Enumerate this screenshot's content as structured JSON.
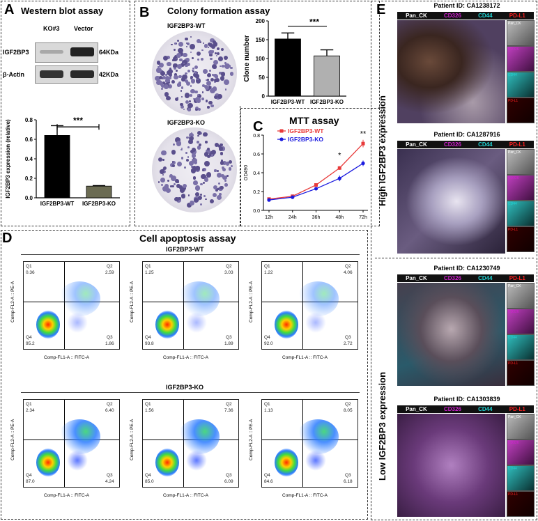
{
  "panelA": {
    "letter": "A",
    "title": "Western blot assay",
    "lanes": [
      "KO#3",
      "Vector"
    ],
    "rows": [
      {
        "protein": "IGF2BP3",
        "kda": "64KDa"
      },
      {
        "protein": "β-Actin",
        "kda": "42KDa"
      }
    ],
    "ylabel": "IGF2BP3 expression (relative)",
    "sig": "***"
  },
  "panelB": {
    "letter": "B",
    "title": "Colony formation assay",
    "dish_labels": [
      "IGF2BP3-WT",
      "IGF2BP3-KO"
    ],
    "ylabel": "Clone number",
    "sig": "***"
  },
  "panelC": {
    "letter": "C",
    "title": "MTT assay",
    "ylabel": "OD490",
    "sig_48": "*",
    "sig_72": "**"
  },
  "panelD": {
    "letter": "D",
    "title": "Cell apoptosis assay",
    "group_wt": "IGF2BP3-WT",
    "group_ko": "IGF2BP3-KO",
    "xaxis": "Comp-FL1-A :: FITC-A",
    "yaxis": "Comp-FL2-A :: PE-A",
    "quadrant_names": [
      "Q1",
      "Q2",
      "Q3",
      "Q4"
    ],
    "plots": [
      {
        "q1": "0.36",
        "q2": "2.59",
        "q3": "1.86",
        "q4": "95.2"
      },
      {
        "q1": "1.25",
        "q2": "3.03",
        "q3": "1.89",
        "q4": "93.8"
      },
      {
        "q1": "1.22",
        "q2": "4.06",
        "q3": "2.72",
        "q4": "92.0"
      },
      {
        "q1": "2.34",
        "q2": "6.40",
        "q3": "4.24",
        "q4": "87.0"
      },
      {
        "q1": "1.56",
        "q2": "7.36",
        "q3": "6.09",
        "q4": "85.0"
      },
      {
        "q1": "1.13",
        "q2": "8.05",
        "q3": "6.18",
        "q4": "84.6"
      }
    ]
  },
  "panelE": {
    "letter": "E",
    "high_label": "High IGF2BP3 expression",
    "low_label": "Low IGF2BP3 expression",
    "markers": [
      "Pan_CK",
      "CD326",
      "CD44",
      "PD-L1"
    ],
    "marker_colors": [
      "#ffffff",
      "#d020d0",
      "#20d0d0",
      "#ff2020"
    ],
    "patients": [
      "Patient ID: CA1238172",
      "Patient ID: CA1287916",
      "Patient ID: CA1230749",
      "Patient ID: CA1303839"
    ]
  },
  "chart_data": [
    {
      "type": "bar",
      "title": "",
      "categories": [
        "IGF2BP3-WT",
        "IGF2BP3-KO"
      ],
      "values": [
        0.64,
        0.12
      ],
      "errors": [
        0.1,
        0.005
      ],
      "ylabel": "IGF2BP3 expression (relative)",
      "ylim": [
        0,
        0.8
      ],
      "yticks": [
        "0.0",
        "0.2",
        "0.4",
        "0.6",
        "0.8"
      ],
      "colors": [
        "#000000",
        "#6b6b52"
      ]
    },
    {
      "type": "bar",
      "title": "",
      "categories": [
        "IGF2BP3-WT",
        "IGF2BP3-KO"
      ],
      "values": [
        152,
        107
      ],
      "errors": [
        16,
        16
      ],
      "ylabel": "Clone number",
      "ylim": [
        0,
        200
      ],
      "yticks": [
        "0",
        "50",
        "100",
        "150",
        "200"
      ],
      "colors": [
        "#000000",
        "#b0b0b0"
      ]
    },
    {
      "type": "line",
      "title": "MTT assay",
      "x": [
        "12h",
        "24h",
        "36h",
        "48h",
        "72h"
      ],
      "ylabel": "OD490",
      "ylim": [
        0,
        0.8
      ],
      "yticks": [
        "0.0",
        "0.2",
        "0.4",
        "0.6",
        "0.8"
      ],
      "series": [
        {
          "name": "IGF2BP3-WT",
          "values": [
            0.12,
            0.15,
            0.27,
            0.45,
            0.71
          ],
          "errors": [
            0.01,
            0.01,
            0.015,
            0.02,
            0.04
          ],
          "color": "#e83a3a"
        },
        {
          "name": "IGF2BP3-KO",
          "values": [
            0.11,
            0.14,
            0.23,
            0.34,
            0.5
          ],
          "errors": [
            0.01,
            0.01,
            0.015,
            0.03,
            0.03
          ],
          "color": "#1a1adf"
        }
      ]
    }
  ]
}
